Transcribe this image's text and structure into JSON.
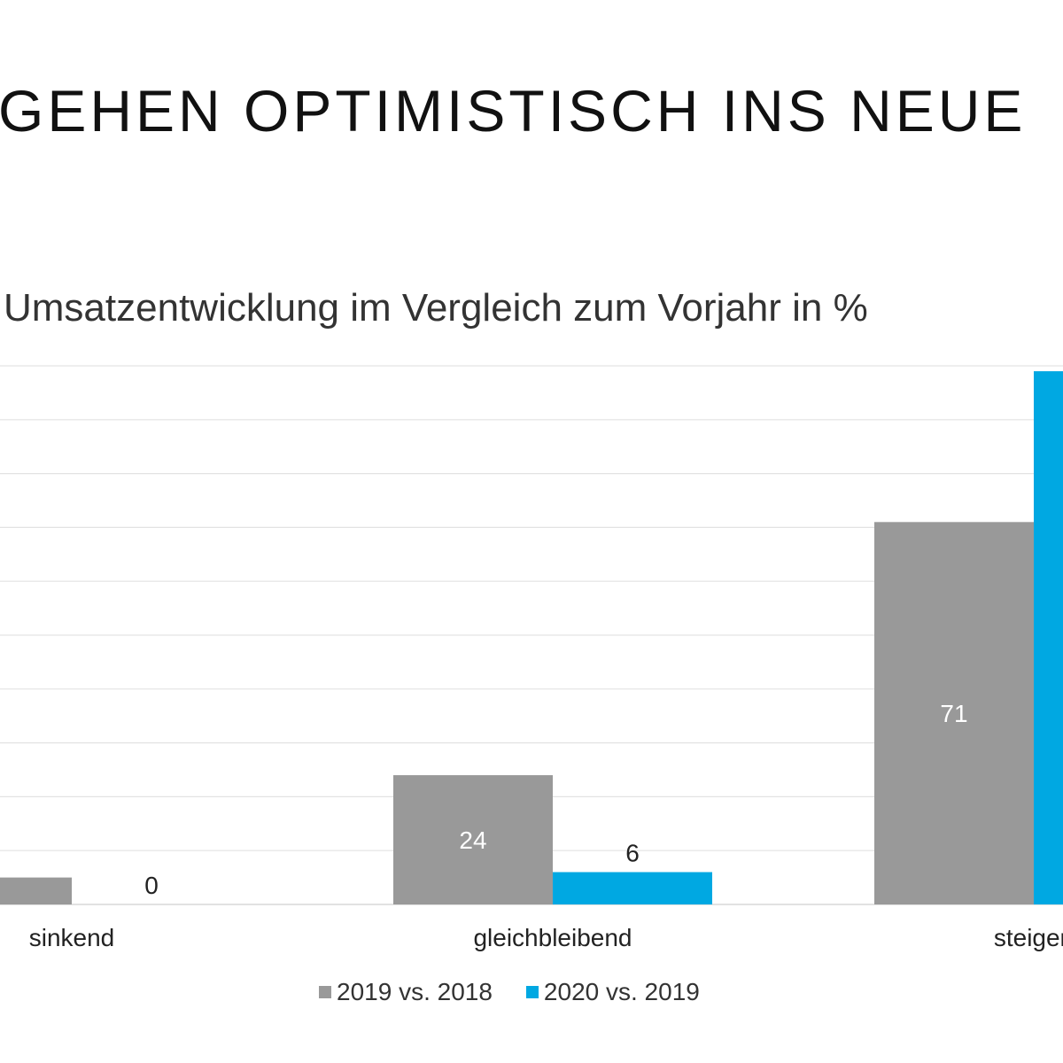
{
  "header": {
    "headline": "GEHEN OPTIMISTISCH INS NEUE"
  },
  "chart_data": {
    "type": "bar",
    "title": "Umsatzentwicklung im Vergleich zum Vorjahr in %",
    "xlabel": "",
    "ylabel": "",
    "categories": [
      "sinkend",
      "gleichbleibend",
      "steigen"
    ],
    "series": [
      {
        "name": "2019 vs. 2018",
        "color": "#999999",
        "values": [
          5,
          24,
          71
        ],
        "labels": [
          "",
          "24",
          "71"
        ]
      },
      {
        "name": "2020 vs. 2019",
        "color": "#00a8e2",
        "values": [
          0,
          6,
          99
        ],
        "labels": [
          "0",
          "6",
          ""
        ]
      }
    ],
    "ylim": [
      0,
      100
    ],
    "grid": true,
    "legend": "bottom-center"
  }
}
